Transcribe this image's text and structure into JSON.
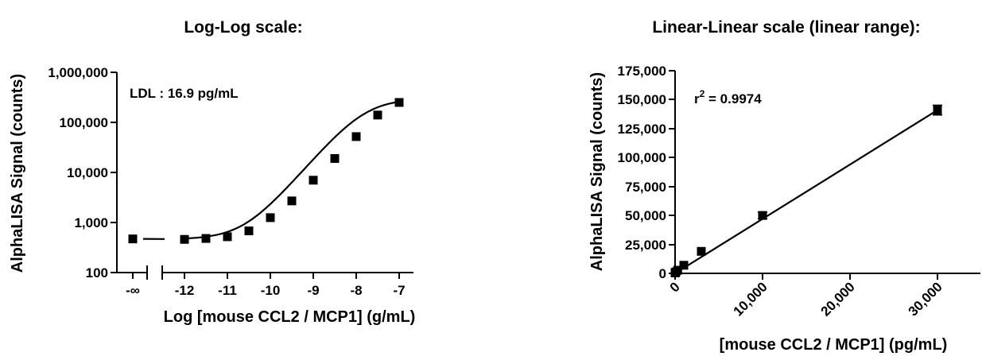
{
  "chart_data": [
    {
      "type": "scatter",
      "title": "Log-Log scale:",
      "xlabel": "Log [mouse CCL2 / MCP1] (g/mL)",
      "ylabel": "AlphaLISA Signal (counts)",
      "x_scale": "log",
      "y_scale": "log",
      "ylim": [
        100,
        1000000
      ],
      "xlim": [
        -12.4,
        -6.8
      ],
      "x_tick_labels": [
        "-∞",
        "-12",
        "-11",
        "-10",
        "-9",
        "-8",
        "-7"
      ],
      "x_tick_values": [
        -12,
        -11,
        -10,
        -9,
        -8,
        -7
      ],
      "y_tick_labels": [
        "100",
        "1,000",
        "10,000",
        "100,000",
        "1,000,000"
      ],
      "y_tick_values": [
        100,
        1000,
        10000,
        100000,
        1000000
      ],
      "annotation": "LDL : 16.9 pg/mL",
      "axis_break": true,
      "fit": "4-parameter logistic",
      "background_point": {
        "x": "-∞",
        "y": 470
      },
      "x": [
        -12,
        -11.5,
        -11,
        -10.5,
        -10,
        -9.5,
        -9,
        -8.5,
        -8,
        -7.5,
        -7
      ],
      "y": [
        460,
        480,
        520,
        680,
        1250,
        2700,
        7000,
        19000,
        52000,
        140000,
        250000
      ],
      "fit_params": {
        "bottom": 460,
        "top": 300000,
        "ec50_log": -7.8,
        "hill": 1.0
      }
    },
    {
      "type": "scatter",
      "title": "Linear-Linear scale (linear range):",
      "xlabel": "[mouse CCL2 / MCP1] (pg/mL)",
      "ylabel": "AlphaLISA Signal (counts)",
      "x_scale": "linear",
      "y_scale": "linear",
      "xlim": [
        0,
        35000
      ],
      "ylim": [
        0,
        175000
      ],
      "x_tick_labels": [
        "0",
        "10,000",
        "20,000",
        "30,000"
      ],
      "x_tick_values": [
        0,
        10000,
        20000,
        30000
      ],
      "y_tick_labels": [
        "0",
        "25,000",
        "50,000",
        "75,000",
        "100,000",
        "125,000",
        "150,000",
        "175,000"
      ],
      "y_tick_values": [
        0,
        25000,
        50000,
        75000,
        100000,
        125000,
        150000,
        175000
      ],
      "annotation": {
        "prefix": "r",
        "superscript": "2",
        "suffix": " = 0.9974"
      },
      "fit": "linear",
      "x": [
        0,
        10,
        30,
        100,
        300,
        1000,
        3000,
        10000,
        30000
      ],
      "y": [
        470,
        520,
        680,
        1250,
        2700,
        7000,
        19000,
        50000,
        141000
      ],
      "y_err": [
        150,
        150,
        150,
        200,
        300,
        400,
        700,
        2800,
        4200
      ],
      "fit_line": {
        "slope": 4.7,
        "intercept": 0
      }
    }
  ]
}
